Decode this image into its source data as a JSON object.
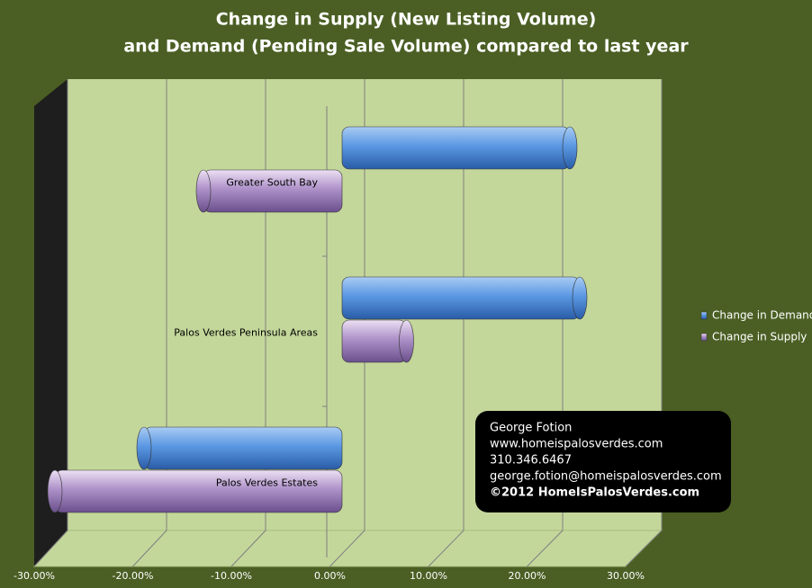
{
  "chart_data": {
    "type": "bar",
    "orientation": "horizontal",
    "title": "Change in Supply (New Listing Volume)",
    "subtitle": "and Demand (Pending Sale Volume) compared to last year",
    "categories": [
      "Greater South Bay",
      "Palos Verdes Peninsula Areas",
      "Palos Verdes Estates"
    ],
    "series": [
      {
        "name": "Change in Demand",
        "color": "#4f8fdf",
        "values": [
          23,
          24,
          -20
        ]
      },
      {
        "name": "Change in Supply",
        "color": "#a98bc4",
        "values": [
          -14,
          6.5,
          -29
        ]
      }
    ],
    "xlim": [
      -30,
      30
    ],
    "xticks": [
      {
        "value": -30,
        "label": "-30.00%"
      },
      {
        "value": -20,
        "label": "-20.00%"
      },
      {
        "value": -10,
        "label": "-10.00%"
      },
      {
        "value": 0,
        "label": "0.00%"
      },
      {
        "value": 10,
        "label": "10.00%"
      },
      {
        "value": 20,
        "label": "20.00%"
      },
      {
        "value": 30,
        "label": "30.00%"
      }
    ],
    "grid": true,
    "legend": "right",
    "annotation": [
      "George Fotion",
      "www.homeispalosverdes.com",
      "310.346.6467",
      "george.fotion@homeispalosverdes.com",
      "©2012 HomeIsPalosVerdes.com"
    ]
  }
}
